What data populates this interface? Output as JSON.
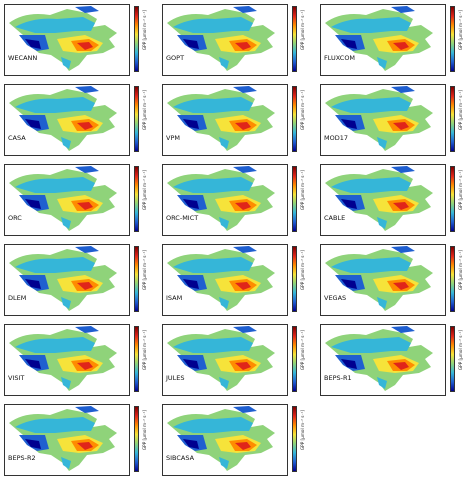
{
  "figure": {
    "colorbar_label": "GPP [μmol m⁻² s⁻¹]",
    "colorscale": [
      "#00008f",
      "#1f5fd0",
      "#35b6d8",
      "#8fd37a",
      "#f6e33a",
      "#ff8c00",
      "#e0251a",
      "#7f0000"
    ],
    "panels": [
      {
        "model": "WECANN"
      },
      {
        "model": "GOPT"
      },
      {
        "model": "FLUXCOM"
      },
      {
        "model": "CASA"
      },
      {
        "model": "VPM"
      },
      {
        "model": "MOD17"
      },
      {
        "model": "ORC"
      },
      {
        "model": "ORC-MICT"
      },
      {
        "model": "CABLE"
      },
      {
        "model": "DLEM"
      },
      {
        "model": "ISAM"
      },
      {
        "model": "VEGAS"
      },
      {
        "model": "VISIT"
      },
      {
        "model": "JULES"
      },
      {
        "model": "BEPS-R1"
      },
      {
        "model": "BEPS-R2"
      },
      {
        "model": "SIBCASA"
      }
    ]
  }
}
